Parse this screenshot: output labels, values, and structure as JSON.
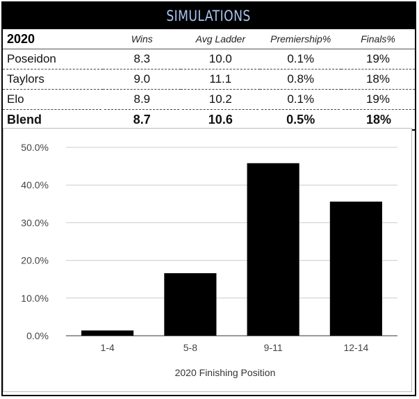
{
  "header": {
    "title": "SIMULATIONS"
  },
  "table": {
    "columns": [
      "2020",
      "Wins",
      "Avg Ladder",
      "Premiership%",
      "Finals%"
    ],
    "rows": [
      {
        "name": "Poseidon",
        "wins": "8.3",
        "avg_ladder": "10.0",
        "premiership": "0.1%",
        "finals": "19%"
      },
      {
        "name": "Taylors",
        "wins": "9.0",
        "avg_ladder": "11.1",
        "premiership": "0.8%",
        "finals": "18%"
      },
      {
        "name": "Elo",
        "wins": "8.9",
        "avg_ladder": "10.2",
        "premiership": "0.1%",
        "finals": "19%"
      },
      {
        "name": "Blend",
        "wins": "8.7",
        "avg_ladder": "10.6",
        "premiership": "0.5%",
        "finals": "18%"
      }
    ]
  },
  "chart_data": {
    "type": "bar",
    "categories": [
      "1-4",
      "5-8",
      "9-11",
      "12-14"
    ],
    "values": [
      1.4,
      16.6,
      45.8,
      35.6
    ],
    "title": "",
    "xlabel": "2020 Finishing Position",
    "ylabel": "",
    "ylim": [
      0,
      50
    ],
    "yticks": [
      "0.0%",
      "10.0%",
      "20.0%",
      "30.0%",
      "40.0%",
      "50.0%"
    ],
    "grid": true,
    "bar_color": "#000000",
    "grid_color": "#cccccc"
  }
}
